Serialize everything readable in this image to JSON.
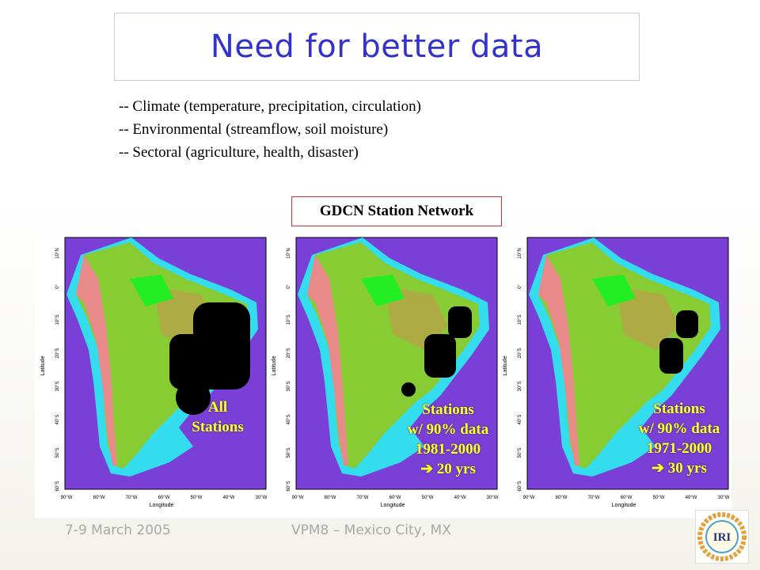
{
  "slide": {
    "title": "Need for better data",
    "bullets": [
      "-- Climate (temperature, precipitation, circulation)",
      "-- Environmental (streamflow, soil moisture)",
      "-- Sectoral (agriculture, health, disaster)"
    ],
    "network_label": "GDCN Station Network",
    "maps": [
      {
        "caption": [
          "All",
          "Stations"
        ]
      },
      {
        "caption": [
          "Stations",
          "w/ 90% data",
          "1981-2000",
          "➔ 20 yrs"
        ]
      },
      {
        "caption": [
          "Stations",
          "w/ 90% data",
          "1971-2000",
          "➔ 30 yrs"
        ]
      }
    ],
    "axes": {
      "ylabel": "Latitude",
      "xlabel": "Longitude",
      "lat_ticks": [
        "10°N",
        "0°",
        "10°S",
        "20°S",
        "30°S",
        "40°S",
        "50°S",
        "60°S"
      ],
      "lon_ticks": [
        "90°W",
        "80°W",
        "70°W",
        "60°W",
        "50°W",
        "40°W",
        "30°W"
      ]
    },
    "footer": {
      "date": "7-9 March 2005",
      "event": "VPM8 – Mexico City, MX"
    },
    "logo_text": "IRI",
    "colors": {
      "title": "#3333cc",
      "caption": "#ffff33",
      "ocean_deep": "#7a3fd6",
      "ocean_shelf": "#33ddee",
      "land_low": "#88cc33",
      "andes": "#e88a8a"
    }
  }
}
